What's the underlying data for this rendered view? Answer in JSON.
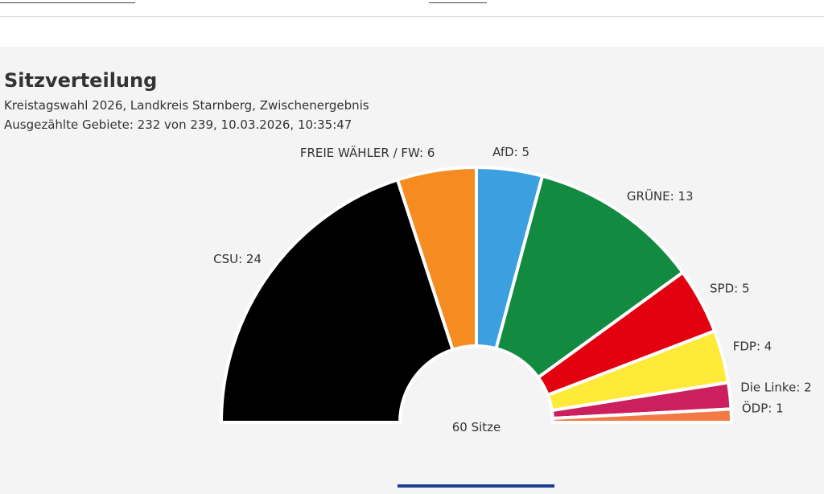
{
  "header": {
    "title": "Sitzverteilung",
    "subtitle": "Kreistagswahl 2026, Landkreis Starnberg, Zwischenergebnis",
    "status": "Ausgezählte Gebiete: 232 von 239, 10.03.2026, 10:35:47"
  },
  "chart_data": {
    "type": "pie",
    "subtype": "semicircle parliament",
    "title": "Sitzverteilung",
    "total_label": "60 Sitze",
    "total": 60,
    "series": [
      {
        "name": "CSU",
        "value": 24,
        "label": "CSU: 24",
        "color": "#000000"
      },
      {
        "name": "FREIE WÄHLER / FW",
        "value": 6,
        "label": "FREIE WÄHLER / FW: 6",
        "color": "#f68b22"
      },
      {
        "name": "AfD",
        "value": 5,
        "label": "AfD: 5",
        "color": "#3c9fe0"
      },
      {
        "name": "GRÜNE",
        "value": 13,
        "label": "GRÜNE: 13",
        "color": "#128a40"
      },
      {
        "name": "SPD",
        "value": 5,
        "label": "SPD: 5",
        "color": "#e3000f"
      },
      {
        "name": "FDP",
        "value": 4,
        "label": "FDP: 4",
        "color": "#ffea3a"
      },
      {
        "name": "Die Linke",
        "value": 2,
        "label": "Die Linke: 2",
        "color": "#cc1f5d"
      },
      {
        "name": "ÖDP",
        "value": 1,
        "label": "ÖDP: 1",
        "color": "#f27a45"
      }
    ]
  }
}
